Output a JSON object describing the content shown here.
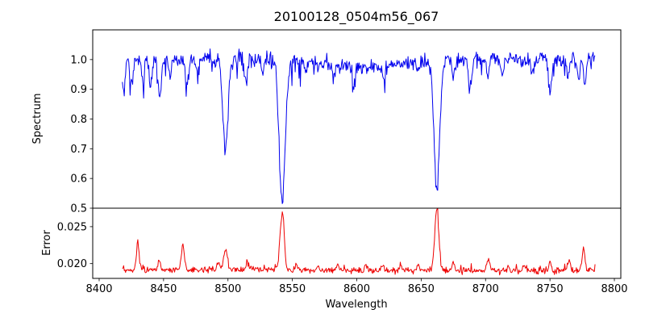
{
  "chart_data": {
    "type": "line",
    "title": "20100128_0504m56_067",
    "xlabel": "Wavelength",
    "xlim": [
      8395,
      8805
    ],
    "xticks": [
      8400,
      8450,
      8500,
      8550,
      8600,
      8650,
      8700,
      8750,
      8800
    ],
    "xtick_labels": [
      "8400",
      "8450",
      "8500",
      "8550",
      "8600",
      "8650",
      "8700",
      "8750",
      "8800"
    ],
    "x_data_range": [
      8418,
      8785
    ],
    "n_points": 734,
    "grid": false,
    "legend": "none",
    "panels": [
      {
        "name": "spectrum",
        "ylabel": "Spectrum",
        "color": "#0000ee",
        "ylim": [
          0.5,
          1.1
        ],
        "yticks": [
          0.5,
          0.6,
          0.7,
          0.8,
          0.9,
          1.0
        ],
        "ytick_labels": [
          "0.5",
          "0.6",
          "0.7",
          "0.8",
          "0.9",
          "1.0"
        ],
        "continuum": 1.0,
        "tilt": 0.0,
        "noise_sigma": 0.013,
        "spike_prob": 0.05,
        "spike_amp": 0.07,
        "seed": 1234,
        "feature_sign": -1,
        "features": [
          [
            8419,
            0.11,
            1.0
          ],
          [
            8425,
            0.09,
            1.1
          ],
          [
            8434,
            0.08,
            1.1
          ],
          [
            8440,
            0.09,
            1.1
          ],
          [
            8447,
            0.12,
            1.2
          ],
          [
            8455,
            0.05,
            1.0
          ],
          [
            8468,
            0.09,
            1.1
          ],
          [
            8476,
            0.05,
            1.0
          ],
          [
            8498.0,
            0.3,
            2.0
          ],
          [
            8514,
            0.07,
            1.1
          ],
          [
            8527,
            0.05,
            1.0
          ],
          [
            8542.1,
            0.47,
            2.4
          ],
          [
            8560,
            0.04,
            1.0
          ],
          [
            8582,
            0.05,
            1.0
          ],
          [
            8598,
            0.06,
            1.1
          ],
          [
            8605,
            0.025,
            28
          ],
          [
            8621,
            0.05,
            1.0
          ],
          [
            8648,
            0.04,
            1.0
          ],
          [
            8662.1,
            0.43,
            2.2
          ],
          [
            8675,
            0.06,
            1.0
          ],
          [
            8688,
            0.1,
            1.3
          ],
          [
            8702,
            0.05,
            1.0
          ],
          [
            8713,
            0.05,
            1.0
          ],
          [
            8736,
            0.05,
            1.0
          ],
          [
            8750,
            0.11,
            1.2
          ],
          [
            8764,
            0.05,
            1.0
          ],
          [
            8772,
            0.06,
            1.0
          ],
          [
            8777,
            0.09,
            1.1
          ]
        ]
      },
      {
        "name": "error",
        "ylabel": "Error",
        "color": "#ee0000",
        "ylim": [
          0.018,
          0.0275
        ],
        "yticks": [
          0.02,
          0.025
        ],
        "ytick_labels": [
          "0.020",
          "0.025"
        ],
        "continuum": 0.0192,
        "tilt": -0.0002,
        "noise_sigma": 0.00022,
        "spike_prob": 0.04,
        "spike_amp": 0.0008,
        "seed": 99,
        "feature_sign": 1,
        "features": [
          [
            8430,
            0.0033,
            1.1
          ],
          [
            8447,
            0.0012,
            1.0
          ],
          [
            8465,
            0.0033,
            1.1
          ],
          [
            8493,
            0.001,
            1.0
          ],
          [
            8498,
            0.0028,
            1.4
          ],
          [
            8515,
            0.001,
            1.0
          ],
          [
            8542.1,
            0.0078,
            1.6
          ],
          [
            8553,
            0.0008,
            1.0
          ],
          [
            8570,
            0.0006,
            1.0
          ],
          [
            8585,
            0.0008,
            1.0
          ],
          [
            8607,
            0.0006,
            1.0
          ],
          [
            8620,
            0.0008,
            1.0
          ],
          [
            8634,
            0.0006,
            1.0
          ],
          [
            8648,
            0.0008,
            1.0
          ],
          [
            8662.1,
            0.0083,
            1.6
          ],
          [
            8675,
            0.001,
            1.0
          ],
          [
            8702,
            0.0013,
            1.1
          ],
          [
            8718,
            0.0007,
            1.0
          ],
          [
            8730,
            0.0008,
            1.0
          ],
          [
            8750,
            0.001,
            1.0
          ],
          [
            8765,
            0.0015,
            1.0
          ],
          [
            8776,
            0.003,
            1.2
          ]
        ]
      }
    ]
  }
}
